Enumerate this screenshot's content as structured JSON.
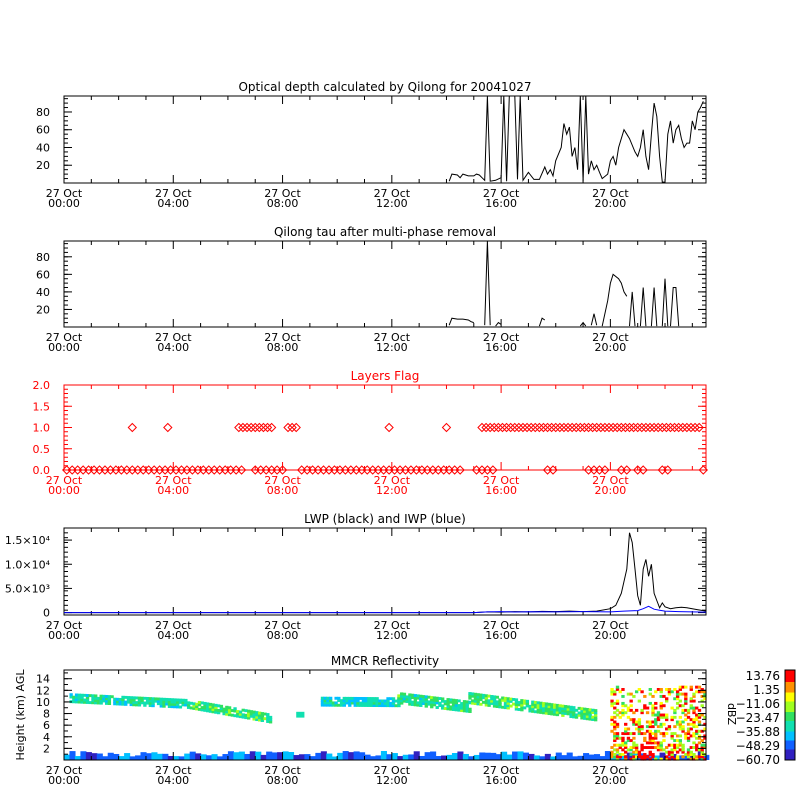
{
  "time_ticks": [
    {
      "top": "27 Oct",
      "bottom": "00:00"
    },
    {
      "top": "27 Oct",
      "bottom": "04:00"
    },
    {
      "top": "27 Oct",
      "bottom": "08:00"
    },
    {
      "top": "27 Oct",
      "bottom": "12:00"
    },
    {
      "top": "27 Oct",
      "bottom": "16:00"
    },
    {
      "top": "27 Oct",
      "bottom": "20:00"
    }
  ],
  "chart_data": [
    {
      "type": "line",
      "title": "Optical depth calculated by Qilong for 20041027",
      "xlabel": "",
      "ylabel": "",
      "x_unit": "hours since 27 Oct 00:00",
      "xlim": [
        0,
        23.5
      ],
      "ylim": [
        0,
        98
      ],
      "y_ticks": [
        20,
        40,
        60,
        80
      ],
      "series": [
        {
          "color": "#000000",
          "segments": [
            [
              [
                14.1,
                2
              ],
              [
                14.2,
                10
              ],
              [
                14.4,
                9
              ],
              [
                14.5,
                6
              ],
              [
                14.6,
                10
              ],
              [
                14.8,
                8
              ],
              [
                15.0,
                8
              ],
              [
                15.1,
                10
              ],
              [
                15.2,
                9
              ],
              [
                15.3,
                6
              ],
              [
                15.4,
                3
              ],
              [
                15.5,
                98
              ],
              [
                15.6,
                2
              ],
              [
                15.8,
                3
              ],
              [
                16.0,
                6
              ],
              [
                16.1,
                98
              ],
              [
                16.2,
                2
              ],
              [
                16.3,
                98
              ],
              [
                16.5,
                98
              ],
              [
                16.6,
                4
              ],
              [
                16.7,
                98
              ],
              [
                16.8,
                3
              ],
              [
                17.0,
                12
              ],
              [
                17.2,
                4
              ],
              [
                17.4,
                4
              ],
              [
                17.6,
                18
              ],
              [
                17.7,
                10
              ],
              [
                17.8,
                15
              ],
              [
                17.9,
                8
              ],
              [
                18.0,
                25
              ],
              [
                18.2,
                40
              ],
              [
                18.3,
                67
              ],
              [
                18.4,
                55
              ],
              [
                18.5,
                63
              ],
              [
                18.6,
                30
              ],
              [
                18.7,
                40
              ],
              [
                18.8,
                15
              ],
              [
                18.9,
                98
              ],
              [
                19.0,
                2
              ],
              [
                19.1,
                98
              ],
              [
                19.2,
                10
              ],
              [
                19.3,
                25
              ],
              [
                19.4,
                15
              ],
              [
                19.5,
                20
              ],
              [
                19.6,
                12
              ],
              [
                19.7,
                5
              ],
              [
                19.9,
                10
              ],
              [
                20.0,
                25
              ],
              [
                20.1,
                30
              ],
              [
                20.2,
                20
              ],
              [
                20.3,
                40
              ],
              [
                20.5,
                60
              ],
              [
                20.6,
                55
              ],
              [
                20.7,
                50
              ],
              [
                20.9,
                35
              ],
              [
                21.0,
                30
              ],
              [
                21.1,
                40
              ],
              [
                21.2,
                60
              ],
              [
                21.3,
                30
              ],
              [
                21.4,
                15
              ],
              [
                21.5,
                55
              ],
              [
                21.6,
                90
              ],
              [
                21.7,
                75
              ],
              [
                21.8,
                30
              ],
              [
                21.9,
                1
              ],
              [
                22.0,
                1
              ],
              [
                22.1,
                55
              ],
              [
                22.2,
                70
              ],
              [
                22.3,
                45
              ],
              [
                22.4,
                60
              ],
              [
                22.5,
                65
              ],
              [
                22.6,
                50
              ],
              [
                22.7,
                40
              ],
              [
                22.8,
                45
              ],
              [
                22.9,
                45
              ],
              [
                23.0,
                70
              ],
              [
                23.1,
                60
              ],
              [
                23.2,
                80
              ],
              [
                23.3,
                85
              ],
              [
                23.4,
                92
              ]
            ]
          ]
        }
      ]
    },
    {
      "type": "line",
      "title": "Qilong tau after multi-phase removal",
      "xlabel": "",
      "ylabel": "",
      "x_unit": "hours since 27 Oct 00:00",
      "xlim": [
        0,
        23.5
      ],
      "ylim": [
        0,
        98
      ],
      "y_ticks": [
        20,
        40,
        60,
        80
      ],
      "series": [
        {
          "color": "#000000",
          "segments": [
            [
              [
                14.1,
                2
              ],
              [
                14.2,
                10
              ],
              [
                14.4,
                9
              ],
              [
                14.6,
                9
              ],
              [
                14.8,
                8
              ],
              [
                14.9,
                6
              ],
              [
                15.0,
                5
              ]
            ],
            [
              [
                15.4,
                2
              ],
              [
                15.5,
                98
              ],
              [
                15.6,
                2
              ]
            ],
            [
              [
                15.8,
                1
              ],
              [
                15.9,
                5
              ],
              [
                16.0,
                3
              ]
            ],
            [
              [
                17.4,
                1
              ],
              [
                17.5,
                10
              ],
              [
                17.6,
                8
              ]
            ],
            [
              [
                18.9,
                1
              ],
              [
                19.0,
                5
              ],
              [
                19.1,
                1
              ]
            ],
            [
              [
                19.3,
                2
              ],
              [
                19.4,
                15
              ],
              [
                19.5,
                2
              ]
            ],
            [
              [
                19.7,
                1
              ],
              [
                19.9,
                30
              ],
              [
                20.0,
                50
              ],
              [
                20.1,
                60
              ],
              [
                20.3,
                55
              ],
              [
                20.4,
                50
              ],
              [
                20.5,
                40
              ],
              [
                20.6,
                35
              ]
            ],
            [
              [
                20.7,
                1
              ],
              [
                20.8,
                40
              ],
              [
                20.9,
                1
              ]
            ],
            [
              [
                21.1,
                1
              ],
              [
                21.2,
                45
              ],
              [
                21.3,
                1
              ]
            ],
            [
              [
                21.5,
                1
              ],
              [
                21.6,
                45
              ],
              [
                21.7,
                1
              ]
            ],
            [
              [
                21.9,
                1
              ],
              [
                22.0,
                55
              ],
              [
                22.1,
                1
              ]
            ],
            [
              [
                22.2,
                1
              ],
              [
                22.3,
                45
              ],
              [
                22.4,
                45
              ],
              [
                22.5,
                1
              ]
            ]
          ]
        }
      ]
    },
    {
      "type": "scatter",
      "title": "Layers Flag",
      "xlabel": "",
      "ylabel": "",
      "x_unit": "hours since 27 Oct 00:00",
      "xlim": [
        0,
        23.5
      ],
      "ylim": [
        0,
        2.0
      ],
      "y_ticks": [
        0.0,
        0.5,
        1.0,
        1.5,
        2.0
      ],
      "marker": "diamond",
      "color": "#ff0000",
      "points_y0_ranges": [
        [
          0.1,
          6.5
        ],
        [
          7.0,
          8.1
        ],
        [
          8.7,
          14.5
        ],
        [
          15.1,
          15.7
        ],
        [
          17.7,
          17.9
        ],
        [
          19.2,
          19.4
        ],
        [
          19.6,
          19.9
        ],
        [
          20.4,
          20.6
        ],
        [
          21.0,
          21.3
        ],
        [
          21.9,
          22.1
        ],
        [
          23.4,
          23.5
        ]
      ],
      "points_y1": [
        2.5,
        3.8
      ],
      "points_y1_ranges": [
        [
          6.4,
          7.7
        ],
        [
          8.2,
          8.6
        ],
        [
          15.3,
          23.3
        ]
      ],
      "points_y1_extra": [
        11.9,
        14.0
      ]
    },
    {
      "type": "line",
      "title": "LWP (black) and IWP (blue)",
      "xlabel": "",
      "ylabel": "",
      "x_unit": "hours since 27 Oct 00:00",
      "xlim": [
        0,
        23.5
      ],
      "ylim": [
        -500,
        17500
      ],
      "y_ticks": [
        {
          "value": 0,
          "label": "0"
        },
        {
          "value": 5000,
          "label": "5.0×10³"
        },
        {
          "value": 10000,
          "label": "1.0×10⁴"
        },
        {
          "value": 15000,
          "label": "1.5×10⁴"
        }
      ],
      "series": [
        {
          "name": "LWP",
          "color": "#000000",
          "segments": [
            [
              [
                0,
                0
              ],
              [
                15.0,
                0
              ],
              [
                15.5,
                150
              ],
              [
                16.0,
                100
              ],
              [
                16.5,
                200
              ],
              [
                17.0,
                150
              ],
              [
                17.5,
                250
              ],
              [
                18.0,
                200
              ],
              [
                18.5,
                300
              ],
              [
                19.0,
                200
              ],
              [
                19.5,
                300
              ],
              [
                20.0,
                800
              ],
              [
                20.2,
                1500
              ],
              [
                20.4,
                4000
              ],
              [
                20.6,
                9000
              ],
              [
                20.7,
                16500
              ],
              [
                20.8,
                14500
              ],
              [
                20.9,
                9000
              ],
              [
                21.0,
                3500
              ],
              [
                21.1,
                1500
              ],
              [
                21.2,
                9000
              ],
              [
                21.3,
                11000
              ],
              [
                21.4,
                7500
              ],
              [
                21.5,
                10000
              ],
              [
                21.6,
                4000
              ],
              [
                21.7,
                2500
              ],
              [
                21.8,
                1000
              ],
              [
                21.9,
                2000
              ],
              [
                22.0,
                1200
              ],
              [
                22.2,
                800
              ],
              [
                22.4,
                1000
              ],
              [
                22.6,
                1100
              ],
              [
                22.8,
                1000
              ],
              [
                23.0,
                800
              ],
              [
                23.2,
                600
              ],
              [
                23.4,
                400
              ],
              [
                23.5,
                300
              ]
            ]
          ]
        },
        {
          "name": "IWP",
          "color": "#0000ff",
          "segments": [
            [
              [
                0,
                0
              ],
              [
                15.0,
                0
              ],
              [
                15.5,
                150
              ],
              [
                16.0,
                200
              ],
              [
                16.5,
                120
              ],
              [
                17.0,
                180
              ],
              [
                18.0,
                150
              ],
              [
                19.0,
                200
              ],
              [
                20.0,
                150
              ],
              [
                20.5,
                300
              ],
              [
                21.0,
                400
              ],
              [
                21.2,
                800
              ],
              [
                21.4,
                1300
              ],
              [
                21.6,
                700
              ],
              [
                21.8,
                500
              ],
              [
                22.0,
                300
              ],
              [
                22.5,
                200
              ],
              [
                23.0,
                150
              ],
              [
                23.5,
                100
              ]
            ]
          ]
        }
      ]
    },
    {
      "type": "heatmap",
      "title": "MMCR Reflectivity",
      "xlabel": "",
      "ylabel": "Height (km) AGL",
      "x_unit": "hours since 27 Oct 00:00",
      "xlim": [
        0,
        23.5
      ],
      "ylim": [
        0,
        15.5
      ],
      "y_ticks": [
        2,
        4,
        6,
        8,
        10,
        12,
        14
      ],
      "colorbar": {
        "label": "dBZ",
        "tick_labels": [
          "13.76",
          "1.35",
          "−11.06",
          "−23.47",
          "−35.88",
          "−48.29",
          "−60.70"
        ],
        "range": [
          -60.7,
          13.76
        ]
      },
      "features": [
        {
          "kind": "layer",
          "x0": 0.2,
          "x1": 4.5,
          "y_top_start": 11.5,
          "y_top_end": 10.5,
          "thickness": 1.6,
          "value": -30
        },
        {
          "kind": "layer",
          "x0": 4.5,
          "x1": 7.5,
          "y_top_start": 10.5,
          "y_top_end": 8.0,
          "thickness": 1.6,
          "value": -25
        },
        {
          "kind": "patch",
          "x": 8.5,
          "y": 7.3,
          "w": 0.3,
          "h": 1.0,
          "value": -35
        },
        {
          "kind": "layer",
          "x0": 9.4,
          "x1": 12.2,
          "y_top_start": 10.6,
          "y_top_end": 10.5,
          "thickness": 1.3,
          "value": -35
        },
        {
          "kind": "layer",
          "x0": 12.2,
          "x1": 14.8,
          "y_top_start": 11.5,
          "y_top_end": 10.0,
          "thickness": 1.8,
          "value": -28
        },
        {
          "kind": "layer",
          "x0": 14.8,
          "x1": 19.5,
          "y_top_start": 11.5,
          "y_top_end": 8.5,
          "thickness": 1.8,
          "value": -25
        },
        {
          "kind": "surface",
          "x0": 0,
          "x1": 23.5,
          "height": 1.2,
          "value": -50
        },
        {
          "kind": "convective",
          "x0": 20.0,
          "x1": 23.5,
          "y0": 0,
          "y1": 12.5,
          "value": -5
        }
      ]
    }
  ]
}
